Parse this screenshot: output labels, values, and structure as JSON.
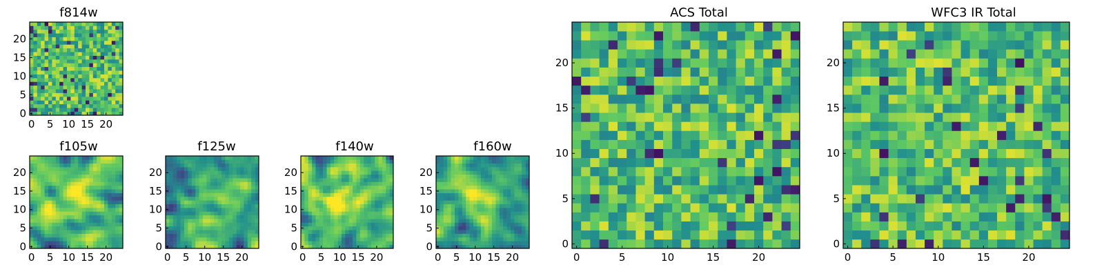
{
  "figure_title": "",
  "palette": [
    "#440154",
    "#3b528b",
    "#21908d",
    "#5ec962",
    "#fde725"
  ],
  "chart_data": [
    {
      "type": "heatmap",
      "title": "f814w",
      "grid_size": 25,
      "colormap": "viridis",
      "seed": 11,
      "smooth": 0,
      "center_boost": 0.0,
      "xticks": [
        0,
        5,
        10,
        15,
        20
      ],
      "yticks": [
        0,
        5,
        10,
        15,
        20
      ],
      "xlim": [
        0,
        24
      ],
      "ylim": [
        0,
        24
      ]
    },
    {
      "type": "heatmap",
      "title": "f105w",
      "grid_size": 25,
      "colormap": "viridis",
      "seed": 23,
      "smooth": 2,
      "center_boost": 0.25,
      "xticks": [
        0,
        5,
        10,
        15,
        20
      ],
      "yticks": [
        0,
        5,
        10,
        15,
        20
      ],
      "xlim": [
        0,
        24
      ],
      "ylim": [
        0,
        24
      ]
    },
    {
      "type": "heatmap",
      "title": "f125w",
      "grid_size": 25,
      "colormap": "viridis",
      "seed": 37,
      "smooth": 2,
      "center_boost": 0.15,
      "xticks": [
        0,
        5,
        10,
        15,
        20
      ],
      "yticks": [
        0,
        5,
        10,
        15,
        20
      ],
      "xlim": [
        0,
        24
      ],
      "ylim": [
        0,
        24
      ]
    },
    {
      "type": "heatmap",
      "title": "f140w",
      "grid_size": 25,
      "colormap": "viridis",
      "seed": 41,
      "smooth": 2,
      "center_boost": 0.25,
      "xticks": [
        0,
        5,
        10,
        15,
        20
      ],
      "yticks": [
        0,
        5,
        10,
        15,
        20
      ],
      "xlim": [
        0,
        24
      ],
      "ylim": [
        0,
        24
      ]
    },
    {
      "type": "heatmap",
      "title": "f160w",
      "grid_size": 25,
      "colormap": "viridis",
      "seed": 53,
      "smooth": 2,
      "center_boost": 0.35,
      "xticks": [
        0,
        5,
        10,
        15,
        20
      ],
      "yticks": [
        0,
        5,
        10,
        15,
        20
      ],
      "xlim": [
        0,
        24
      ],
      "ylim": [
        0,
        24
      ]
    },
    {
      "type": "heatmap",
      "title": "ACS Total",
      "grid_size": 25,
      "colormap": "viridis",
      "seed": 67,
      "smooth": 0,
      "center_boost": 0.0,
      "xticks": [
        0,
        5,
        10,
        15,
        20
      ],
      "yticks": [
        0,
        5,
        10,
        15,
        20
      ],
      "xlim": [
        0,
        24
      ],
      "ylim": [
        0,
        24
      ]
    },
    {
      "type": "heatmap",
      "title": "WFC3 IR Total",
      "grid_size": 25,
      "colormap": "viridis",
      "seed": 79,
      "smooth": 0,
      "center_boost": 0.0,
      "xticks": [
        0,
        5,
        10,
        15,
        20
      ],
      "yticks": [
        0,
        5,
        10,
        15,
        20
      ],
      "xlim": [
        0,
        24
      ],
      "ylim": [
        0,
        24
      ]
    }
  ]
}
